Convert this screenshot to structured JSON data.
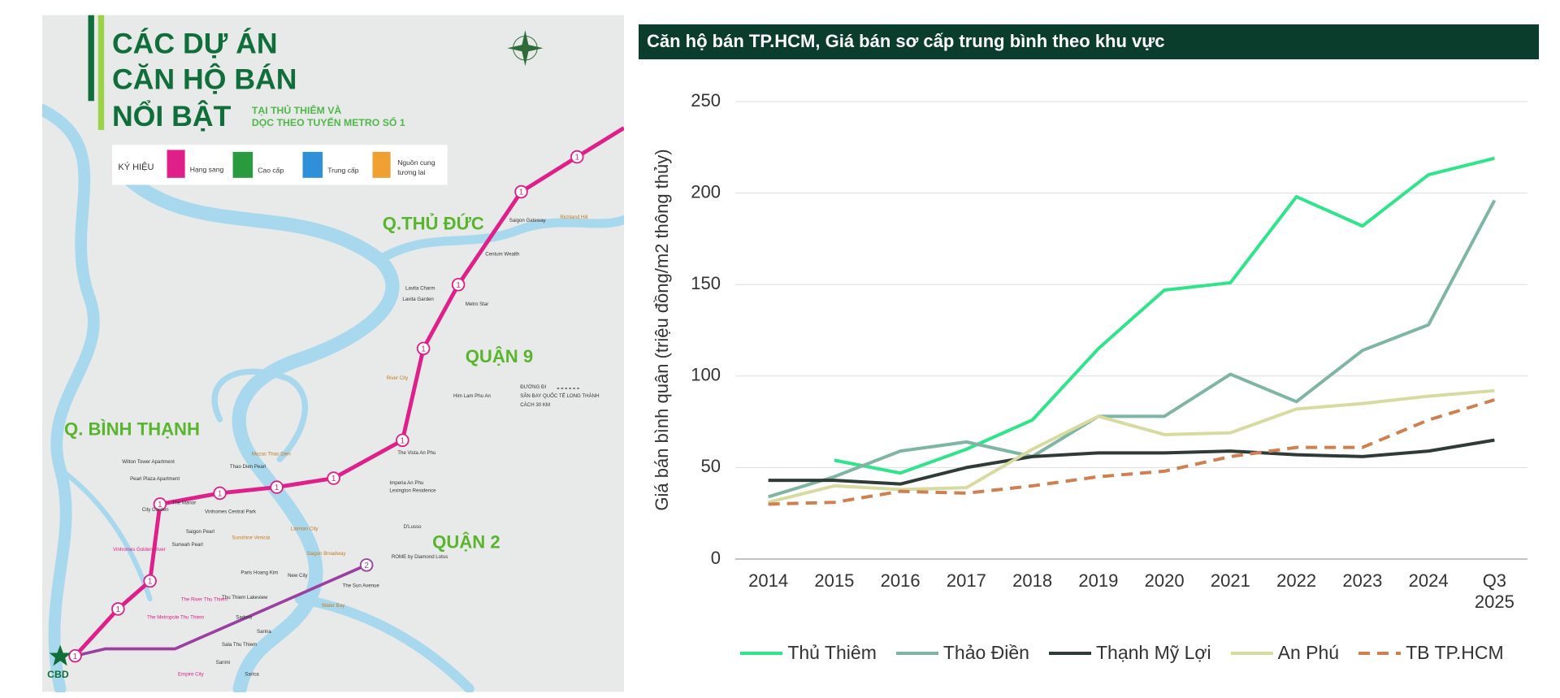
{
  "map": {
    "title": [
      "CÁC DỰ ÁN",
      "CĂN HỘ BÁN",
      "NỔI BẬT"
    ],
    "subtitle": [
      "TẠI THỦ THIÊM VÀ",
      "DỌC THEO TUYẾN METRO SỐ 1"
    ],
    "legend": {
      "label": "KÝ HIỆU",
      "items": [
        "Hạng sang",
        "Cao cấp",
        "Trung cấp",
        "Nguồn cung",
        "tương lai"
      ]
    },
    "districts": [
      "Q.THỦ ĐỨC",
      "QUẬN 9",
      "Q. BÌNH THẠNH",
      "QUẬN 2"
    ],
    "cbd": "CBD",
    "metro": {
      "line1": "1",
      "line2": "2"
    },
    "airport_note": [
      "ĐƯỜNG ĐI",
      "SÂN BAY QUỐC TẾ LONG THÀNH",
      "CÁCH 30 KM"
    ],
    "projects": [
      "Saigon Gateway",
      "Richland Hill",
      "Centum Wealth",
      "Lavita Charm",
      "Lavita Garden",
      "Metro Star",
      "River City",
      "Him Lam Phu An",
      "The Vista An Phu",
      "Imperia An Phu",
      "Lexington Residence",
      "Mozac Thao Dien",
      "Thao Dien Pearl",
      "Wilton Tower Apartment",
      "Pearl Plaza Apartment",
      "The Manor",
      "Vinhomes Central Park",
      "City Garden",
      "Saigon Pearl",
      "Sunwah Pearl",
      "Vinhomes Golden River",
      "Sunshine Venicia",
      "Laimian City",
      "D'Lusso",
      "ROME by Diamond Lotus",
      "Saigon Broadway",
      "Paris Hoang Kim",
      "New City",
      "The Sun Avenue",
      "Thu Thiem Lakeview",
      "The River Thu Thiem",
      "The Metropole Thu Thiem",
      "Water Bay",
      "Sadora",
      "Sarina",
      "Sala Thu Thiem",
      "Sarimi",
      "Sarica",
      "Empire City"
    ]
  },
  "chart_data": {
    "type": "line",
    "title": "Căn hộ bán TP.HCM, Giá bán sơ cấp trung bình theo khu vực",
    "y_label": "Giá bán bình quân (triệu đồng/m2 thông thủy)",
    "categories": [
      "2014",
      "2015",
      "2016",
      "2017",
      "2018",
      "2019",
      "2020",
      "2021",
      "2022",
      "2023",
      "2024",
      "Q3 2025"
    ],
    "series": [
      {
        "name": "Thủ Thiêm",
        "color": "#2ee58a",
        "values": [
          null,
          54,
          47,
          60,
          76,
          115,
          147,
          151,
          198,
          182,
          210,
          219
        ]
      },
      {
        "name": "Thảo Điền",
        "color": "#7fb5a3",
        "values": [
          34,
          45,
          59,
          64,
          56,
          78,
          78,
          101,
          86,
          114,
          128,
          196
        ]
      },
      {
        "name": "Thạnh Mỹ Lợi",
        "color": "#2f3b37",
        "values": [
          43,
          43,
          41,
          50,
          56,
          58,
          58,
          59,
          57,
          56,
          59,
          65
        ]
      },
      {
        "name": "An Phú",
        "color": "#d7dba0",
        "values": [
          31,
          40,
          38,
          39,
          60,
          78,
          68,
          69,
          82,
          85,
          89,
          92
        ]
      },
      {
        "name": "TB TP.HCM",
        "color": "#d08050",
        "linestyle": "dashed",
        "values": [
          30,
          31,
          37,
          36,
          40,
          45,
          48,
          56,
          61,
          61,
          76,
          87
        ]
      }
    ],
    "ylim": [
      0,
      250
    ],
    "yticks": [
      0,
      50,
      100,
      150,
      200,
      250
    ],
    "grid": true,
    "legend": "bottom"
  }
}
